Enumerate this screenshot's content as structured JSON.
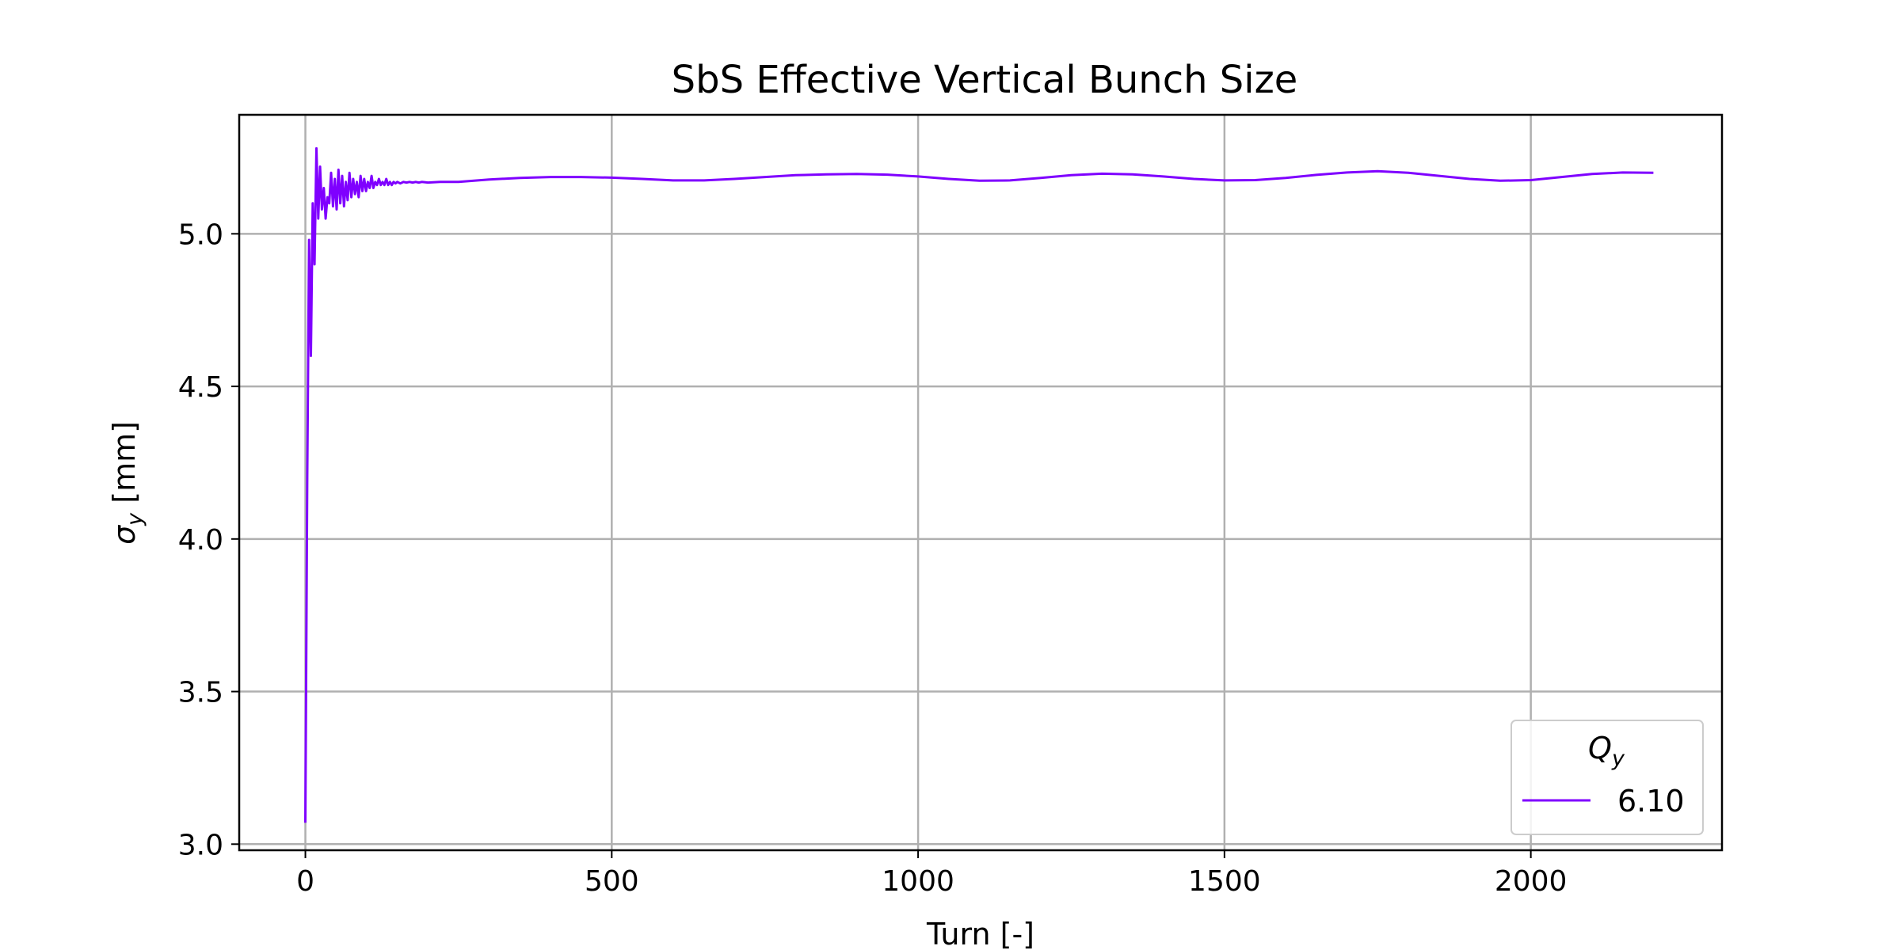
{
  "chart_data": {
    "type": "line",
    "title": "SbS Effective Vertical Bunch Size",
    "xlabel": "Turn [-]",
    "ylabel_symbol": "σ",
    "ylabel_subscript": "y",
    "ylabel_unit": "[mm]",
    "xlim": [
      -108,
      2312
    ],
    "ylim": [
      2.98,
      5.39
    ],
    "xticks": [
      0,
      500,
      1000,
      1500,
      2000
    ],
    "xtick_labels": [
      "0",
      "500",
      "1000",
      "1500",
      "2000"
    ],
    "yticks": [
      3.0,
      3.5,
      4.0,
      4.5,
      5.0
    ],
    "ytick_labels": [
      "3.0",
      "3.5",
      "4.0",
      "4.5",
      "5.0"
    ],
    "grid": true,
    "legend_position": "bottom-right",
    "legend_title_symbol": "Q",
    "legend_title_subscript": "y",
    "series": [
      {
        "name": "6.10",
        "color": "#7f00ff",
        "x": [
          0,
          3,
          6,
          9,
          12,
          15,
          18,
          21,
          24,
          27,
          30,
          33,
          36,
          39,
          42,
          45,
          48,
          51,
          54,
          57,
          60,
          63,
          66,
          69,
          72,
          75,
          78,
          81,
          84,
          87,
          90,
          93,
          96,
          99,
          102,
          105,
          108,
          111,
          114,
          117,
          120,
          123,
          126,
          129,
          132,
          135,
          138,
          141,
          144,
          147,
          150,
          155,
          160,
          165,
          170,
          175,
          180,
          185,
          190,
          200,
          220,
          250,
          300,
          350,
          400,
          450,
          500,
          550,
          600,
          650,
          700,
          750,
          800,
          850,
          900,
          950,
          1000,
          1050,
          1100,
          1150,
          1200,
          1250,
          1300,
          1350,
          1400,
          1450,
          1500,
          1550,
          1600,
          1650,
          1700,
          1750,
          1800,
          1850,
          1900,
          1950,
          2000,
          2050,
          2100,
          2150,
          2200
        ],
        "y": [
          3.07,
          4.2,
          4.98,
          4.6,
          5.1,
          4.9,
          5.28,
          5.05,
          5.22,
          5.08,
          5.15,
          5.05,
          5.12,
          5.1,
          5.2,
          5.09,
          5.18,
          5.08,
          5.21,
          5.1,
          5.19,
          5.09,
          5.17,
          5.11,
          5.2,
          5.12,
          5.18,
          5.13,
          5.17,
          5.12,
          5.19,
          5.14,
          5.18,
          5.14,
          5.17,
          5.15,
          5.19,
          5.15,
          5.17,
          5.16,
          5.18,
          5.16,
          5.17,
          5.16,
          5.18,
          5.16,
          5.17,
          5.16,
          5.17,
          5.165,
          5.17,
          5.165,
          5.17,
          5.168,
          5.17,
          5.168,
          5.17,
          5.168,
          5.17,
          5.168,
          5.17,
          5.17,
          5.178,
          5.183,
          5.186,
          5.186,
          5.184,
          5.18,
          5.175,
          5.175,
          5.18,
          5.186,
          5.192,
          5.195,
          5.196,
          5.194,
          5.188,
          5.18,
          5.174,
          5.175,
          5.183,
          5.192,
          5.197,
          5.195,
          5.188,
          5.18,
          5.175,
          5.176,
          5.183,
          5.193,
          5.201,
          5.205,
          5.2,
          5.19,
          5.18,
          5.174,
          5.176,
          5.186,
          5.196,
          5.201,
          5.2
        ]
      }
    ]
  }
}
